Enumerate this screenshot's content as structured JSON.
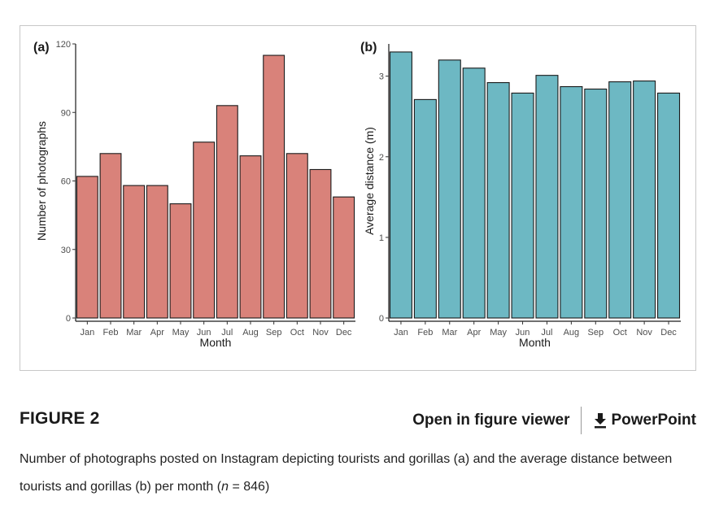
{
  "figure": {
    "label": "FIGURE 2",
    "open_viewer_label": "Open in figure viewer",
    "powerpoint_label": "PowerPoint",
    "icons": {
      "download": "download-icon"
    },
    "caption_part1": "Number of photographs posted on Instagram depicting tourists and gorillas (a) and the average distance between tourists and gorillas (b) per month (",
    "caption_n": "n",
    "caption_part2": " = 846)"
  },
  "chart_data": [
    {
      "type": "bar",
      "panel_label": "(a)",
      "categories": [
        "Jan",
        "Feb",
        "Mar",
        "Apr",
        "May",
        "Jun",
        "Jul",
        "Aug",
        "Sep",
        "Oct",
        "Nov",
        "Dec"
      ],
      "values": [
        62,
        72,
        58,
        58,
        50,
        77,
        93,
        71,
        115,
        72,
        65,
        53
      ],
      "xlabel": "Month",
      "ylabel": "Number of photographs",
      "ylim": [
        0,
        120
      ],
      "yticks": [
        0,
        30,
        60,
        90,
        120
      ],
      "bar_color": "#d9827a",
      "grid": false
    },
    {
      "type": "bar",
      "panel_label": "(b)",
      "categories": [
        "Jan",
        "Feb",
        "Mar",
        "Apr",
        "May",
        "Jun",
        "Jul",
        "Aug",
        "Sep",
        "Oct",
        "Nov",
        "Dec"
      ],
      "values": [
        3.3,
        2.71,
        3.2,
        3.1,
        2.92,
        2.79,
        3.01,
        2.87,
        2.84,
        2.93,
        2.94,
        2.79
      ],
      "xlabel": "Month",
      "ylabel": "Average distance (m)",
      "ylim": [
        0,
        3.4
      ],
      "yticks": [
        0,
        1,
        2,
        3
      ],
      "bar_color": "#6db8c3",
      "grid": false
    }
  ]
}
